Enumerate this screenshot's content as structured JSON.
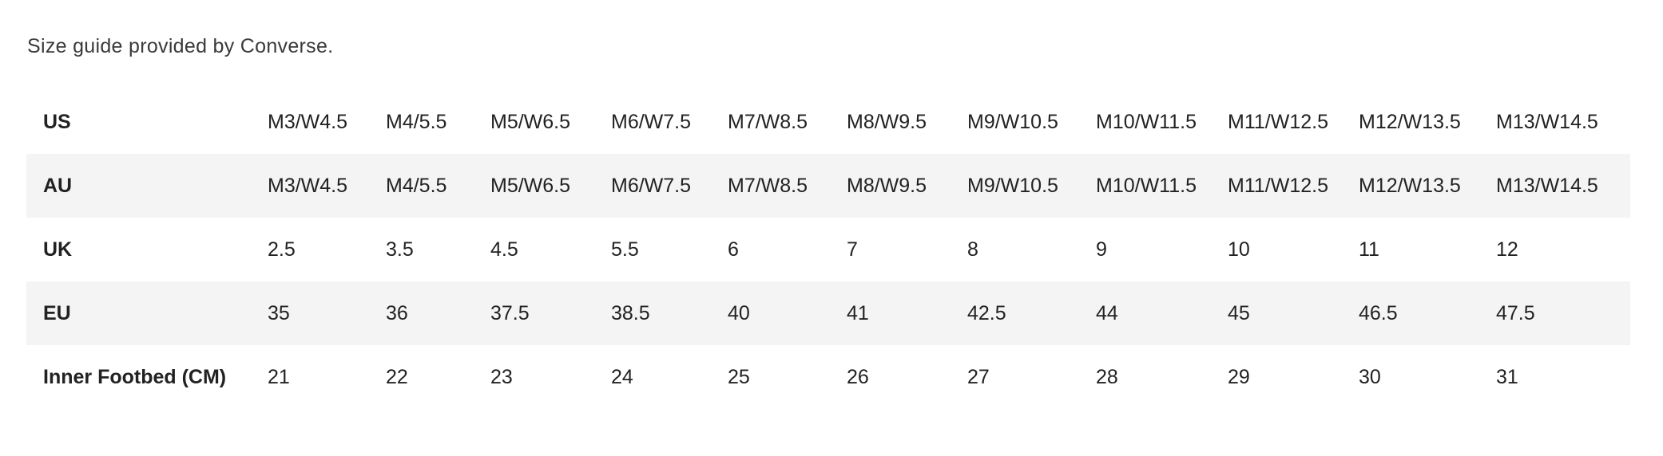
{
  "intro": "Size guide provided by Converse.",
  "table": {
    "rows": [
      {
        "label": "US",
        "values": [
          "M3/W4.5",
          "M4/5.5",
          "M5/W6.5",
          "M6/W7.5",
          "M7/W8.5",
          "M8/W9.5",
          "M9/W10.5",
          "M10/W11.5",
          "M11/W12.5",
          "M12/W13.5",
          "M13/W14.5"
        ]
      },
      {
        "label": "AU",
        "values": [
          "M3/W4.5",
          "M4/5.5",
          "M5/W6.5",
          "M6/W7.5",
          "M7/W8.5",
          "M8/W9.5",
          "M9/W10.5",
          "M10/W11.5",
          "M11/W12.5",
          "M12/W13.5",
          "M13/W14.5"
        ]
      },
      {
        "label": "UK",
        "values": [
          "2.5",
          "3.5",
          "4.5",
          "5.5",
          "6",
          "7",
          "8",
          "9",
          "10",
          "11",
          "12"
        ]
      },
      {
        "label": "EU",
        "values": [
          "35",
          "36",
          "37.5",
          "38.5",
          "40",
          "41",
          "42.5",
          "44",
          "45",
          "46.5",
          "47.5"
        ]
      },
      {
        "label": "Inner Footbed (CM)",
        "values": [
          "21",
          "22",
          "23",
          "24",
          "25",
          "26",
          "27",
          "28",
          "29",
          "30",
          "31"
        ]
      }
    ]
  },
  "colors": {
    "stripe": "#f4f4f4",
    "text": "#222222"
  }
}
